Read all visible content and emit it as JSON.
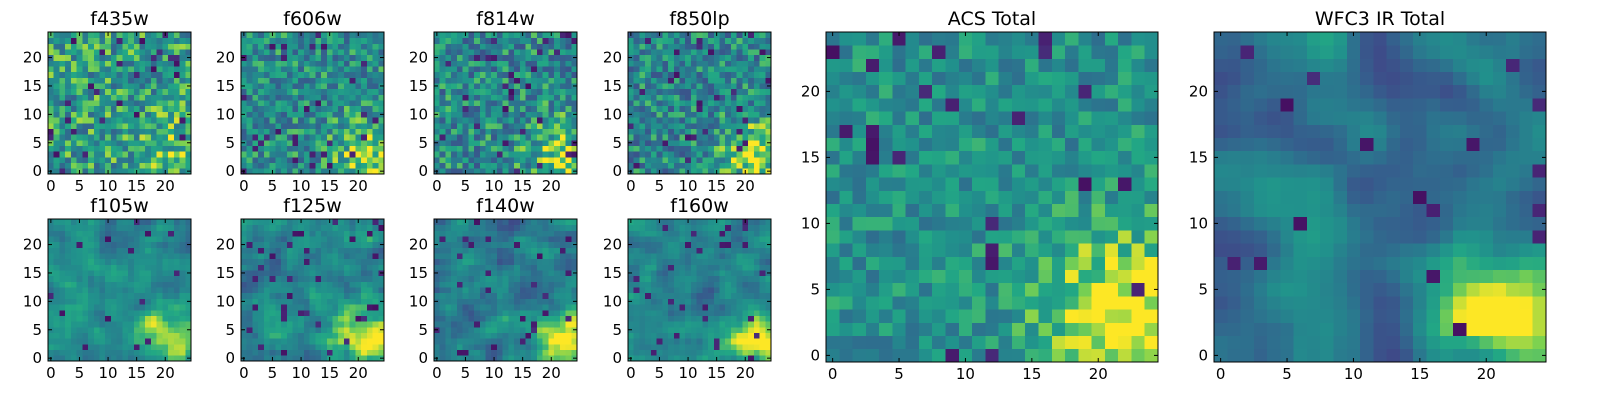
{
  "figure": {
    "description_free": true
  },
  "chart_data": [
    {
      "type": "heatmap",
      "title": "f435w",
      "grid_size": 25,
      "xticks": [
        0,
        5,
        10,
        15,
        20
      ],
      "yticks": [
        0,
        5,
        10,
        15,
        20
      ],
      "xlim": [
        -0.5,
        24.5
      ],
      "ylim": [
        -0.5,
        24.5
      ],
      "colormap": "viridis",
      "seed": 11,
      "smooth": 0,
      "mean": 0.66,
      "spread": 0.26,
      "dark_fraction": 0.05,
      "bright_corner": 0.15
    },
    {
      "type": "heatmap",
      "title": "f606w",
      "grid_size": 25,
      "xticks": [
        0,
        5,
        10,
        15,
        20
      ],
      "yticks": [
        0,
        5,
        10,
        15,
        20
      ],
      "xlim": [
        -0.5,
        24.5
      ],
      "ylim": [
        -0.5,
        24.5
      ],
      "colormap": "viridis",
      "seed": 23,
      "smooth": 0,
      "mean": 0.6,
      "spread": 0.24,
      "dark_fraction": 0.04,
      "bright_corner": 0.3
    },
    {
      "type": "heatmap",
      "title": "f814w",
      "grid_size": 25,
      "xticks": [
        0,
        5,
        10,
        15,
        20
      ],
      "yticks": [
        0,
        5,
        10,
        15,
        20
      ],
      "xlim": [
        -0.5,
        24.5
      ],
      "ylim": [
        -0.5,
        24.5
      ],
      "colormap": "viridis",
      "seed": 37,
      "smooth": 0,
      "mean": 0.58,
      "spread": 0.26,
      "dark_fraction": 0.05,
      "bright_corner": 0.3
    },
    {
      "type": "heatmap",
      "title": "f850lp",
      "grid_size": 25,
      "xticks": [
        0,
        5,
        10,
        15,
        20
      ],
      "yticks": [
        0,
        5,
        10,
        15,
        20
      ],
      "xlim": [
        -0.5,
        24.5
      ],
      "ylim": [
        -0.5,
        24.5
      ],
      "colormap": "viridis",
      "seed": 41,
      "smooth": 0,
      "mean": 0.57,
      "spread": 0.25,
      "dark_fraction": 0.05,
      "bright_corner": 0.35
    },
    {
      "type": "heatmap",
      "title": "f105w",
      "grid_size": 25,
      "xticks": [
        0,
        5,
        10,
        15,
        20
      ],
      "yticks": [
        0,
        5,
        10,
        15,
        20
      ],
      "xlim": [
        -0.5,
        24.5
      ],
      "ylim": [
        -0.5,
        24.5
      ],
      "colormap": "viridis",
      "seed": 53,
      "smooth": 1,
      "mean": 0.58,
      "spread": 0.22,
      "dark_fraction": 0.03,
      "bright_corner": 0.4
    },
    {
      "type": "heatmap",
      "title": "f125w",
      "grid_size": 25,
      "xticks": [
        0,
        5,
        10,
        15,
        20
      ],
      "yticks": [
        0,
        5,
        10,
        15,
        20
      ],
      "xlim": [
        -0.5,
        24.5
      ],
      "ylim": [
        -0.5,
        24.5
      ],
      "colormap": "viridis",
      "seed": 67,
      "smooth": 1,
      "mean": 0.56,
      "spread": 0.24,
      "dark_fraction": 0.04,
      "bright_corner": 0.45
    },
    {
      "type": "heatmap",
      "title": "f140w",
      "grid_size": 25,
      "xticks": [
        0,
        5,
        10,
        15,
        20
      ],
      "yticks": [
        0,
        5,
        10,
        15,
        20
      ],
      "xlim": [
        -0.5,
        24.5
      ],
      "ylim": [
        -0.5,
        24.5
      ],
      "colormap": "viridis",
      "seed": 71,
      "smooth": 1,
      "mean": 0.52,
      "spread": 0.24,
      "dark_fraction": 0.04,
      "bright_corner": 0.5
    },
    {
      "type": "heatmap",
      "title": "f160w",
      "grid_size": 25,
      "xticks": [
        0,
        5,
        10,
        15,
        20
      ],
      "yticks": [
        0,
        5,
        10,
        15,
        20
      ],
      "xlim": [
        -0.5,
        24.5
      ],
      "ylim": [
        -0.5,
        24.5
      ],
      "colormap": "viridis",
      "seed": 83,
      "smooth": 1,
      "mean": 0.5,
      "spread": 0.25,
      "dark_fraction": 0.05,
      "bright_corner": 0.5
    },
    {
      "type": "heatmap",
      "title": "ACS Total",
      "grid_size": 25,
      "xticks": [
        0,
        5,
        10,
        15,
        20
      ],
      "yticks": [
        0,
        5,
        10,
        15,
        20
      ],
      "xlim": [
        -0.5,
        24.5
      ],
      "ylim": [
        -0.5,
        24.5
      ],
      "colormap": "viridis",
      "seed": 97,
      "smooth": 0,
      "mean": 0.62,
      "spread": 0.17,
      "dark_fraction": 0.04,
      "bright_corner": 0.45
    },
    {
      "type": "heatmap",
      "title": "WFC3 IR Total",
      "grid_size": 25,
      "xticks": [
        0,
        5,
        10,
        15,
        20
      ],
      "yticks": [
        0,
        5,
        10,
        15,
        20
      ],
      "xlim": [
        -0.5,
        24.5
      ],
      "ylim": [
        -0.5,
        24.5
      ],
      "colormap": "viridis",
      "seed": 101,
      "smooth": 2,
      "mean": 0.48,
      "spread": 0.25,
      "dark_fraction": 0.03,
      "bright_corner": 0.6
    }
  ]
}
